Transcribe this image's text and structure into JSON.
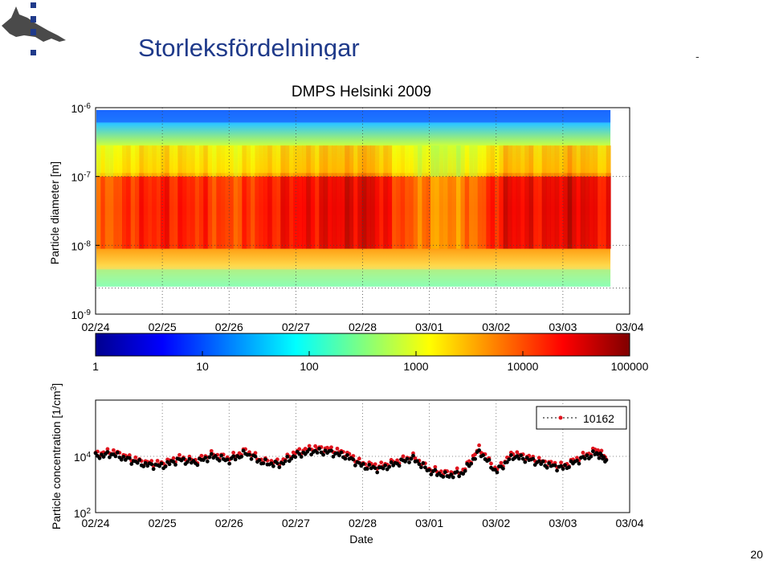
{
  "slide": {
    "title": "Storleksfördelningar",
    "dash": "-",
    "page_number": "20",
    "logo_icon": "university-logo-icon"
  },
  "chart_data": [
    {
      "type": "heatmap",
      "title": "DMPS Helsinki 2009",
      "xlabel": "",
      "ylabel": "Particle diameter [m]",
      "x_ticks": [
        "02/24",
        "02/25",
        "02/26",
        "02/27",
        "02/28",
        "03/01",
        "03/02",
        "03/03",
        "03/04"
      ],
      "y_ticks": [
        "10^-9",
        "10^-8",
        "10^-7",
        "10^-6"
      ],
      "y_scale": "log",
      "ylim": [
        1e-09,
        1e-06
      ],
      "data_x_range": [
        "02/24",
        "03/03 17:00"
      ],
      "data_y_range": [
        3e-09,
        1e-06
      ],
      "colormap": "jet",
      "grid": true,
      "description_values": {
        "x_days": [
          0,
          0.5,
          1.0,
          1.5,
          2.0,
          2.5,
          3.0,
          3.5,
          4.0,
          4.5,
          5.0,
          5.5,
          6.0,
          6.5,
          7.0,
          7.5
        ],
        "peak_log10_dN": [
          3.8,
          4.2,
          4.3,
          4.2,
          4.0,
          4.3,
          4.4,
          4.5,
          4.6,
          4.0,
          3.6,
          3.8,
          4.5,
          4.4,
          4.6,
          4.3
        ]
      }
    },
    {
      "type": "colorbar",
      "scale": "log",
      "tick_labels": [
        "1",
        "10",
        "100",
        "1000",
        "10000",
        "100000"
      ],
      "range": [
        1,
        100000
      ],
      "colormap": "jet"
    },
    {
      "type": "scatter",
      "xlabel": "Date",
      "ylabel": "Particle concentration [1/cm^3]",
      "x_ticks": [
        "02/24",
        "02/25",
        "02/26",
        "02/27",
        "02/28",
        "03/01",
        "03/02",
        "03/03",
        "03/04"
      ],
      "y_ticks": [
        "10^2",
        "10^4"
      ],
      "y_scale": "log",
      "ylim": [
        100,
        1000000
      ],
      "legend": "top-right",
      "series": [
        {
          "name": "10162",
          "color": "#e0141e",
          "x_days": [
            0,
            0.25,
            0.5,
            0.75,
            1.0,
            1.25,
            1.5,
            1.75,
            2.0,
            2.25,
            2.5,
            2.75,
            3.0,
            3.25,
            3.5,
            3.75,
            4.0,
            4.25,
            4.5,
            4.75,
            5.0,
            5.25,
            5.5,
            5.75,
            6.0,
            6.25,
            6.5,
            6.75,
            7.0,
            7.25,
            7.5,
            7.65
          ],
          "values": [
            12000,
            15000,
            9000,
            6000,
            5500,
            9000,
            7000,
            12000,
            8500,
            16000,
            7000,
            6000,
            14000,
            20000,
            18000,
            13000,
            5500,
            4500,
            6500,
            10000,
            3500,
            2500,
            3000,
            20000,
            3200,
            13000,
            9000,
            6000,
            4500,
            9000,
            17000,
            9000
          ]
        },
        {
          "name": "",
          "color": "#000000",
          "x_days": [
            0,
            0.25,
            0.5,
            0.75,
            1.0,
            1.25,
            1.5,
            1.75,
            2.0,
            2.25,
            2.5,
            2.75,
            3.0,
            3.25,
            3.5,
            3.75,
            4.0,
            4.25,
            4.5,
            4.75,
            5.0,
            5.25,
            5.5,
            5.75,
            6.0,
            6.25,
            6.5,
            6.75,
            7.0,
            7.25,
            7.5,
            7.65
          ],
          "values": [
            10000,
            12000,
            7500,
            5000,
            4500,
            7500,
            6000,
            10000,
            7000,
            13000,
            6000,
            5000,
            11000,
            15000,
            14000,
            10000,
            4500,
            3500,
            5500,
            8500,
            3000,
            2000,
            2500,
            15000,
            2800,
            10000,
            7500,
            5000,
            3800,
            7500,
            13000,
            7500
          ]
        }
      ]
    }
  ]
}
